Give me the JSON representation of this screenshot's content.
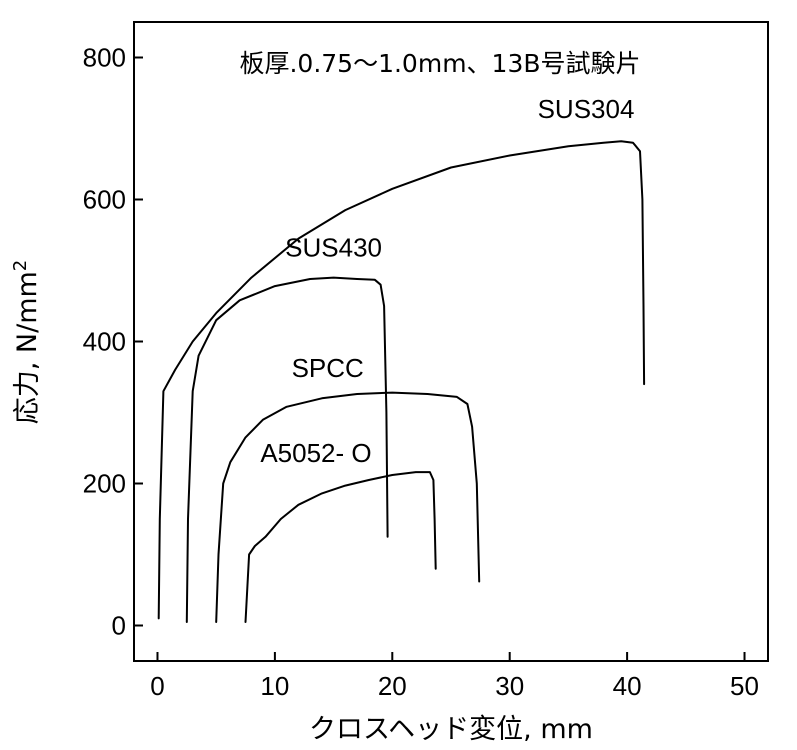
{
  "chart_data": {
    "type": "line",
    "title": "板厚.0.75～1.0mm、13B号試験片",
    "xlabel": "クロスヘッド変位, mm",
    "ylabel": "応力, N/mm",
    "ylabel_superscript": "2",
    "xlim": [
      -2,
      52
    ],
    "ylim": [
      -50,
      850
    ],
    "xticks": [
      0,
      10,
      20,
      30,
      40,
      50
    ],
    "yticks": [
      0,
      200,
      400,
      600,
      800
    ],
    "xtick_labels": [
      "0",
      "10",
      "20",
      "30",
      "40",
      "50"
    ],
    "ytick_labels": [
      "0",
      "200",
      "400",
      "600",
      "800"
    ],
    "grid": false,
    "series": [
      {
        "name": "SUS304",
        "label_pos": [
          36.5,
          715
        ],
        "points": [
          [
            0.1,
            10
          ],
          [
            0.2,
            150
          ],
          [
            0.5,
            330
          ],
          [
            1.5,
            360
          ],
          [
            3,
            400
          ],
          [
            5,
            440
          ],
          [
            8,
            490
          ],
          [
            12,
            545
          ],
          [
            16,
            585
          ],
          [
            20,
            615
          ],
          [
            25,
            645
          ],
          [
            30,
            662
          ],
          [
            35,
            675
          ],
          [
            38,
            680
          ],
          [
            39.5,
            682
          ],
          [
            40.5,
            680
          ],
          [
            41.1,
            668
          ],
          [
            41.3,
            600
          ],
          [
            41.4,
            450
          ],
          [
            41.45,
            340
          ]
        ]
      },
      {
        "name": "SUS430",
        "label_pos": [
          15,
          520
        ],
        "points": [
          [
            2.5,
            5
          ],
          [
            2.6,
            150
          ],
          [
            3.0,
            330
          ],
          [
            3.5,
            380
          ],
          [
            5,
            430
          ],
          [
            7,
            458
          ],
          [
            10,
            478
          ],
          [
            13,
            488
          ],
          [
            15,
            490
          ],
          [
            17,
            488
          ],
          [
            18.5,
            487
          ],
          [
            19.0,
            480
          ],
          [
            19.3,
            450
          ],
          [
            19.5,
            300
          ],
          [
            19.6,
            125
          ]
        ]
      },
      {
        "name": "SPCC",
        "label_pos": [
          14.5,
          350
        ],
        "points": [
          [
            5,
            5
          ],
          [
            5.2,
            100
          ],
          [
            5.6,
            200
          ],
          [
            6.2,
            230
          ],
          [
            7.5,
            265
          ],
          [
            9,
            290
          ],
          [
            11,
            308
          ],
          [
            14,
            320
          ],
          [
            17,
            326
          ],
          [
            20,
            328
          ],
          [
            23,
            326
          ],
          [
            25.5,
            322
          ],
          [
            26.4,
            312
          ],
          [
            26.8,
            280
          ],
          [
            27.2,
            200
          ],
          [
            27.4,
            62
          ]
        ]
      },
      {
        "name": "A5052- O",
        "label_pos": [
          13.5,
          230
        ],
        "points": [
          [
            7.5,
            5
          ],
          [
            7.8,
            100
          ],
          [
            8.3,
            112
          ],
          [
            9.2,
            125
          ],
          [
            10.5,
            150
          ],
          [
            12,
            170
          ],
          [
            14,
            186
          ],
          [
            16,
            197
          ],
          [
            18,
            205
          ],
          [
            20,
            212
          ],
          [
            22,
            216
          ],
          [
            23.2,
            216
          ],
          [
            23.5,
            205
          ],
          [
            23.6,
            150
          ],
          [
            23.7,
            80
          ]
        ]
      }
    ]
  }
}
